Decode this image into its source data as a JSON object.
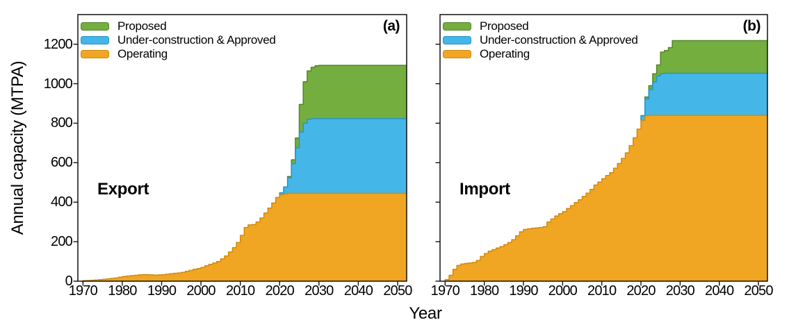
{
  "labels": {
    "xlabel": "Year",
    "ylabel": "Annual capacity (MTPA)"
  },
  "legend": {
    "items": [
      {
        "label": "Proposed",
        "color": "#74ae3e",
        "edge": "#538527"
      },
      {
        "label": "Under-construction & Approved",
        "color": "#45b6e8",
        "edge": "#2494c9"
      },
      {
        "label": "Operating",
        "color": "#f0a622",
        "edge": "#cf8a10"
      }
    ]
  },
  "panels": [
    {
      "tag": "(a)",
      "region_label": "Export"
    },
    {
      "tag": "(b)",
      "region_label": "Import"
    }
  ],
  "chart_data": [
    {
      "type": "area",
      "stacked": true,
      "title": "Export",
      "panel": "(a)",
      "xlabel": "Year",
      "ylabel": "Annual capacity (MTPA)",
      "xlim": [
        1968.7,
        2052.3
      ],
      "ylim": [
        0,
        1350
      ],
      "x_ticks": [
        1970,
        1980,
        1990,
        2000,
        2010,
        2020,
        2030,
        2040,
        2050
      ],
      "y_ticks": [
        0,
        200,
        400,
        600,
        800,
        1000,
        1200
      ],
      "x": [
        1969,
        1970,
        1971,
        1972,
        1973,
        1974,
        1975,
        1976,
        1977,
        1978,
        1979,
        1980,
        1981,
        1982,
        1983,
        1984,
        1985,
        1986,
        1987,
        1988,
        1989,
        1990,
        1991,
        1992,
        1993,
        1994,
        1995,
        1996,
        1997,
        1998,
        1999,
        2000,
        2001,
        2002,
        2003,
        2004,
        2005,
        2006,
        2007,
        2008,
        2009,
        2010,
        2011,
        2012,
        2013,
        2014,
        2015,
        2016,
        2017,
        2018,
        2019,
        2020,
        2021,
        2022,
        2023,
        2024,
        2025,
        2026,
        2027,
        2028,
        2029,
        2030,
        2031,
        2032,
        2033,
        2034,
        2035,
        2036,
        2037,
        2038,
        2039,
        2040,
        2041,
        2042,
        2043,
        2044,
        2045,
        2046,
        2047,
        2048,
        2049,
        2050,
        2051
      ],
      "series": [
        {
          "name": "Operating",
          "color": "#f0a622",
          "edge": "#cf8a10",
          "values": [
            0,
            3,
            4,
            5,
            6,
            8,
            10,
            12,
            14,
            16,
            20,
            24,
            26,
            28,
            30,
            32,
            33,
            33,
            32,
            31,
            32,
            33,
            35,
            38,
            40,
            42,
            45,
            50,
            55,
            60,
            64,
            70,
            78,
            85,
            92,
            100,
            113,
            128,
            148,
            170,
            196,
            232,
            272,
            285,
            287,
            300,
            320,
            345,
            370,
            396,
            424,
            438,
            442,
            445,
            445,
            445,
            445,
            445,
            445,
            445,
            445,
            445,
            445,
            445,
            445,
            445,
            445,
            445,
            445,
            445,
            445,
            445,
            445,
            445,
            445,
            445,
            445,
            445,
            445,
            445,
            445,
            445,
            445
          ]
        },
        {
          "name": "Under-construction & Approved",
          "color": "#45b6e8",
          "edge": "#2494c9",
          "values": [
            0,
            0,
            0,
            0,
            0,
            0,
            0,
            0,
            0,
            0,
            0,
            0,
            0,
            0,
            0,
            0,
            0,
            0,
            0,
            0,
            0,
            0,
            0,
            0,
            0,
            0,
            0,
            0,
            0,
            0,
            0,
            0,
            0,
            0,
            0,
            0,
            0,
            0,
            0,
            0,
            0,
            0,
            0,
            0,
            0,
            0,
            0,
            0,
            0,
            0,
            0,
            10,
            35,
            80,
            150,
            230,
            310,
            355,
            375,
            378,
            378,
            378,
            378,
            378,
            378,
            378,
            378,
            378,
            378,
            378,
            378,
            378,
            378,
            378,
            378,
            378,
            378,
            378,
            378,
            378,
            378,
            378,
            378
          ]
        },
        {
          "name": "Proposed",
          "color": "#74ae3e",
          "edge": "#538527",
          "values": [
            0,
            0,
            0,
            0,
            0,
            0,
            0,
            0,
            0,
            0,
            0,
            0,
            0,
            0,
            0,
            0,
            0,
            0,
            0,
            0,
            0,
            0,
            0,
            0,
            0,
            0,
            0,
            0,
            0,
            0,
            0,
            0,
            0,
            0,
            0,
            0,
            0,
            0,
            0,
            0,
            0,
            0,
            0,
            0,
            0,
            0,
            0,
            0,
            0,
            0,
            0,
            0,
            0,
            5,
            20,
            50,
            140,
            210,
            245,
            260,
            268,
            270,
            270,
            270,
            270,
            270,
            270,
            270,
            270,
            270,
            270,
            270,
            270,
            270,
            270,
            270,
            270,
            270,
            270,
            270,
            270,
            270,
            270
          ]
        }
      ]
    },
    {
      "type": "area",
      "stacked": true,
      "title": "Import",
      "panel": "(b)",
      "xlabel": "Year",
      "ylabel": "Annual capacity (MTPA)",
      "xlim": [
        1968.7,
        2052.3
      ],
      "ylim": [
        0,
        1350
      ],
      "x_ticks": [
        1970,
        1980,
        1990,
        2000,
        2010,
        2020,
        2030,
        2040,
        2050
      ],
      "y_ticks": [
        0,
        200,
        400,
        600,
        800,
        1000,
        1200
      ],
      "x": [
        1969,
        1970,
        1971,
        1972,
        1973,
        1974,
        1975,
        1976,
        1977,
        1978,
        1979,
        1980,
        1981,
        1982,
        1983,
        1984,
        1985,
        1986,
        1987,
        1988,
        1989,
        1990,
        1991,
        1992,
        1993,
        1994,
        1995,
        1996,
        1997,
        1998,
        1999,
        2000,
        2001,
        2002,
        2003,
        2004,
        2005,
        2006,
        2007,
        2008,
        2009,
        2010,
        2011,
        2012,
        2013,
        2014,
        2015,
        2016,
        2017,
        2018,
        2019,
        2020,
        2021,
        2022,
        2023,
        2024,
        2025,
        2026,
        2027,
        2028,
        2029,
        2030,
        2031,
        2032,
        2033,
        2034,
        2035,
        2036,
        2037,
        2038,
        2039,
        2040,
        2041,
        2042,
        2043,
        2044,
        2045,
        2046,
        2047,
        2048,
        2049,
        2050,
        2051
      ],
      "series": [
        {
          "name": "Operating",
          "color": "#f0a622",
          "edge": "#cf8a10",
          "values": [
            0,
            8,
            30,
            60,
            80,
            87,
            90,
            92,
            95,
            105,
            125,
            140,
            152,
            160,
            168,
            175,
            185,
            196,
            210,
            230,
            250,
            262,
            265,
            268,
            270,
            272,
            276,
            300,
            315,
            330,
            342,
            352,
            368,
            382,
            398,
            412,
            430,
            446,
            465,
            487,
            502,
            519,
            535,
            550,
            572,
            596,
            622,
            650,
            686,
            726,
            770,
            814,
            838,
            840,
            840,
            840,
            840,
            840,
            840,
            840,
            840,
            840,
            840,
            840,
            840,
            840,
            840,
            840,
            840,
            840,
            840,
            840,
            840,
            840,
            840,
            840,
            840,
            840,
            840,
            840,
            840,
            840,
            840
          ]
        },
        {
          "name": "Under-construction & Approved",
          "color": "#45b6e8",
          "edge": "#2494c9",
          "values": [
            0,
            0,
            0,
            0,
            0,
            0,
            0,
            0,
            0,
            0,
            0,
            0,
            0,
            0,
            0,
            0,
            0,
            0,
            0,
            0,
            0,
            0,
            0,
            0,
            0,
            0,
            0,
            0,
            0,
            0,
            0,
            0,
            0,
            0,
            0,
            0,
            0,
            0,
            0,
            0,
            0,
            0,
            0,
            0,
            0,
            0,
            0,
            0,
            0,
            0,
            0,
            25,
            85,
            130,
            170,
            200,
            210,
            213,
            213,
            213,
            213,
            213,
            213,
            213,
            213,
            213,
            213,
            213,
            213,
            213,
            213,
            213,
            213,
            213,
            213,
            213,
            213,
            213,
            213,
            213,
            213,
            213,
            213
          ]
        },
        {
          "name": "Proposed",
          "color": "#74ae3e",
          "edge": "#538527",
          "values": [
            0,
            0,
            0,
            0,
            0,
            0,
            0,
            0,
            0,
            0,
            0,
            0,
            0,
            0,
            0,
            0,
            0,
            0,
            0,
            0,
            0,
            0,
            0,
            0,
            0,
            0,
            0,
            0,
            0,
            0,
            0,
            0,
            0,
            0,
            0,
            0,
            0,
            0,
            0,
            0,
            0,
            0,
            0,
            0,
            0,
            0,
            0,
            0,
            0,
            0,
            0,
            0,
            10,
            20,
            40,
            55,
            110,
            115,
            130,
            165,
            165,
            165,
            165,
            165,
            165,
            165,
            165,
            165,
            165,
            165,
            165,
            165,
            165,
            165,
            165,
            165,
            165,
            165,
            165,
            165,
            165,
            165,
            165
          ]
        }
      ]
    }
  ]
}
